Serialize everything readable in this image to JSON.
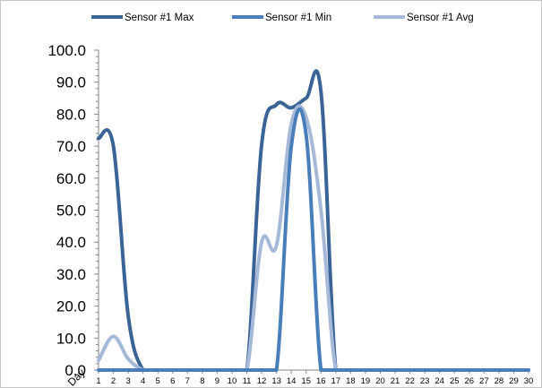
{
  "chart_data": {
    "type": "line",
    "x": [
      1,
      2,
      3,
      4,
      5,
      6,
      7,
      8,
      9,
      10,
      11,
      12,
      13,
      14,
      15,
      16,
      17,
      18,
      19,
      20,
      21,
      22,
      23,
      24,
      25,
      26,
      27,
      28,
      29,
      30
    ],
    "xlabel": "Day",
    "ylabel": "",
    "title": "",
    "ylim": [
      0,
      100
    ],
    "yticks": [
      "0.0",
      "10.0",
      "20.0",
      "30.0",
      "40.0",
      "50.0",
      "60.0",
      "70.0",
      "80.0",
      "90.0",
      "100.0"
    ],
    "grid": false,
    "legend_position": "top",
    "series": [
      {
        "name": "Sensor #1 Max",
        "color": "#3B6496",
        "values": [
          72.5,
          70,
          17,
          0,
          0,
          0,
          0,
          0,
          0,
          0,
          0,
          70.5,
          83,
          82,
          85,
          87,
          0,
          0,
          0,
          0,
          0,
          0,
          0,
          0,
          0,
          0,
          0,
          0,
          0,
          0
        ]
      },
      {
        "name": "Sensor #1 Min",
        "color": "#4A7EBB",
        "values": [
          0,
          0,
          0,
          0,
          0,
          0,
          0,
          0,
          0,
          0,
          0,
          0,
          0,
          70,
          73.5,
          0,
          0,
          0,
          0,
          0,
          0,
          0,
          0,
          0,
          0,
          0,
          0,
          0,
          0,
          0
        ]
      },
      {
        "name": "Sensor #1 Avg",
        "color": "#A7B9D9",
        "values": [
          3,
          10.5,
          3.5,
          0,
          0,
          0,
          0,
          0,
          0,
          0,
          0,
          40,
          39,
          77,
          79,
          50,
          0,
          0,
          0,
          0,
          0,
          0,
          0,
          0,
          0,
          0,
          0,
          0,
          0,
          0
        ]
      }
    ]
  }
}
